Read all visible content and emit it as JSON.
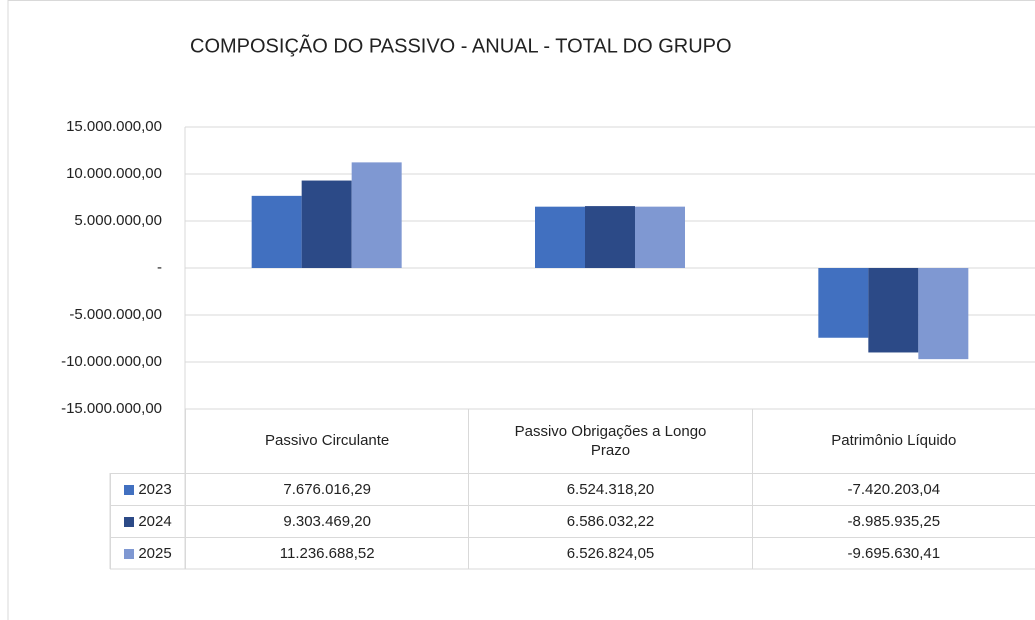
{
  "chart_data": {
    "type": "bar",
    "title": "COMPOSIÇÃO DO PASSIVO - ANUAL - TOTAL DO GRUPO",
    "categories": [
      "Passivo Circulante",
      "Passivo Obrigações a Longo Prazo",
      "Patrimônio Líquido"
    ],
    "series": [
      {
        "name": "2023",
        "color": "#4170c0",
        "values": [
          7676016.29,
          6524318.2,
          -7420203.04
        ],
        "value_labels": [
          "7.676.016,29",
          "6.524.318,20",
          "-7.420.203,04"
        ]
      },
      {
        "name": "2024",
        "color": "#2c4a87",
        "values": [
          9303469.2,
          6586032.22,
          -8985935.25
        ],
        "value_labels": [
          "9.303.469,20",
          "6.586.032,22",
          "-8.985.935,25"
        ]
      },
      {
        "name": "2025",
        "color": "#7f98d2",
        "values": [
          11236688.52,
          6526824.05,
          -9695630.41
        ],
        "value_labels": [
          "11.236.688,52",
          "6.526.824,05",
          "-9.695.630,41"
        ]
      }
    ],
    "ylim": [
      -15000000,
      15000000
    ],
    "yticks": [
      {
        "value": 15000000,
        "label": "15.000.000,00"
      },
      {
        "value": 10000000,
        "label": "10.000.000,00"
      },
      {
        "value": 5000000,
        "label": "5.000.000,00"
      },
      {
        "value": 0,
        "label": "-"
      },
      {
        "value": -5000000,
        "label": "-5.000.000,00"
      },
      {
        "value": -10000000,
        "label": "-10.000.000,00"
      },
      {
        "value": -15000000,
        "label": "-15.000.000,00"
      }
    ],
    "grid": true
  }
}
